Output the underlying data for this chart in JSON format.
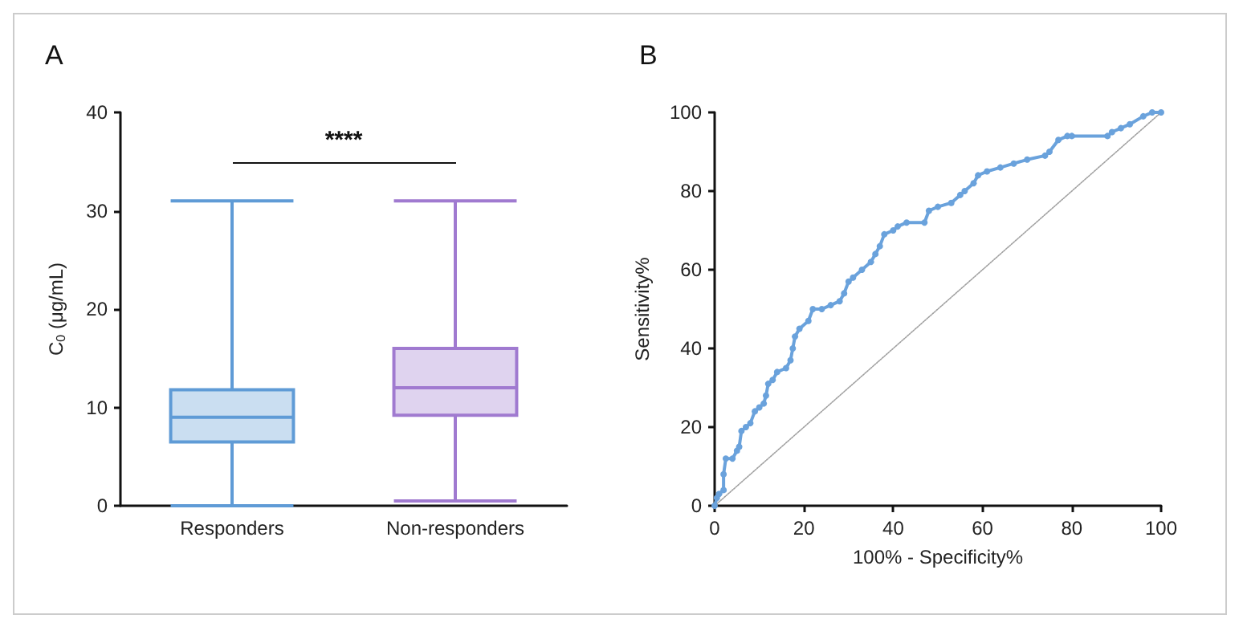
{
  "chart_data": [
    {
      "type": "box",
      "title": "A",
      "ylabel": "C$_{0}$ (μg/mL)",
      "categories": [
        "Responders",
        "Non-responders"
      ],
      "ylim": [
        0,
        40
      ],
      "yticks": [
        0,
        10,
        20,
        30,
        40
      ],
      "colors": [
        "#5f9bd6",
        "#a07ad0"
      ],
      "boxes": [
        {
          "low": 0,
          "q1": 6.5,
          "median": 9,
          "q3": 11.8,
          "high": 31
        },
        {
          "low": 0.5,
          "q1": 9.2,
          "median": 12,
          "q3": 16,
          "high": 31
        }
      ],
      "annotations": [
        "****"
      ]
    },
    {
      "type": "line",
      "title": "B",
      "xlabel": "100% - Specificity%",
      "ylabel": "Sensitivity%",
      "xlim": [
        0,
        100
      ],
      "xticks": [
        0,
        20,
        40,
        60,
        80,
        100
      ],
      "ylim": [
        0,
        100
      ],
      "yticks": [
        0,
        20,
        40,
        60,
        80,
        100
      ],
      "series": [
        {
          "color": "#6aa2dc",
          "marker": "circle",
          "line_style": "solid",
          "x": [
            0,
            0.5,
            1,
            2,
            2,
            2.5,
            4,
            5,
            5.5,
            6,
            7,
            8,
            9,
            10,
            11,
            11.5,
            12,
            13,
            14,
            16,
            17,
            17.5,
            18,
            19,
            21,
            22,
            24,
            26,
            28,
            29,
            30,
            31,
            33,
            35,
            36,
            37,
            38,
            40,
            41,
            43,
            47,
            48,
            50,
            53,
            55,
            56,
            58,
            59,
            61,
            64,
            67,
            70,
            74,
            75,
            77,
            79,
            80,
            88,
            89,
            91,
            93,
            96,
            98,
            100
          ],
          "values": [
            0,
            2,
            3,
            4,
            8,
            12,
            12,
            14,
            15,
            19,
            20,
            21,
            24,
            25,
            26,
            28,
            31,
            32,
            34,
            35,
            37,
            40,
            43,
            45,
            47,
            50,
            50,
            51,
            52,
            54,
            57,
            58,
            60,
            62,
            64,
            66,
            69,
            70,
            71,
            72,
            72,
            75,
            76,
            77,
            79,
            80,
            82,
            84,
            85,
            86,
            87,
            88,
            89,
            90,
            93,
            94,
            94,
            94,
            95,
            96,
            97,
            99,
            100,
            100
          ]
        },
        {
          "color": "#a0a0a0",
          "marker": "none",
          "line_style": "dotted",
          "x": [
            0,
            100
          ],
          "values": [
            0,
            100
          ]
        }
      ]
    }
  ]
}
